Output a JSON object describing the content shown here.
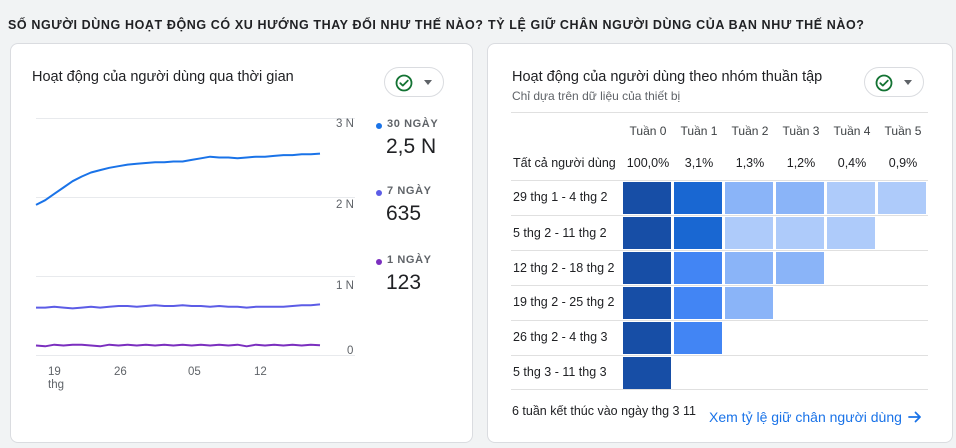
{
  "left_section": {
    "heading": "SỐ NGƯỜI DÙNG HOẠT ĐỘNG CÓ XU HƯỚNG THAY ĐỔI NHƯ THẾ NÀO?",
    "card_title": "Hoạt động của người dùng qua thời gian",
    "status_icon": "check-circle-icon",
    "y_ticks": [
      "3 N",
      "2 N",
      "1 N",
      "0"
    ],
    "x_ticks": [
      {
        "label": "19",
        "sub": "thg"
      },
      {
        "label": "26",
        "sub": ""
      },
      {
        "label": "05",
        "sub": ""
      },
      {
        "label": "12",
        "sub": ""
      }
    ],
    "legend": [
      {
        "label": "30 NGÀY",
        "value": "2,5 N",
        "color": "#1a73e8"
      },
      {
        "label": "7 NGÀY",
        "value": "635",
        "color": "#5c5ce6"
      },
      {
        "label": "1 NGÀY",
        "value": "123",
        "color": "#7b2fbf"
      }
    ]
  },
  "chart_data": {
    "type": "line",
    "x": [
      "19 thg",
      "",
      "",
      "",
      "",
      "",
      "",
      "26",
      "",
      "",
      "",
      "",
      "",
      "",
      "",
      "",
      "",
      "05",
      "",
      "",
      "",
      "",
      "",
      "",
      "12",
      "",
      "",
      "",
      "",
      "",
      "",
      ""
    ],
    "ylim": [
      0,
      3000
    ],
    "grid": true,
    "series": [
      {
        "name": "30 NGÀY",
        "color": "#1a73e8",
        "values": [
          1900,
          1960,
          2040,
          2120,
          2200,
          2260,
          2310,
          2340,
          2370,
          2390,
          2410,
          2420,
          2430,
          2440,
          2440,
          2450,
          2450,
          2470,
          2490,
          2510,
          2500,
          2500,
          2490,
          2500,
          2510,
          2510,
          2520,
          2530,
          2530,
          2540,
          2540,
          2550
        ]
      },
      {
        "name": "7 NGÀY",
        "color": "#5c5ce6",
        "values": [
          600,
          600,
          610,
          600,
          590,
          600,
          610,
          600,
          610,
          620,
          620,
          610,
          620,
          630,
          620,
          620,
          630,
          620,
          620,
          610,
          620,
          610,
          610,
          600,
          610,
          610,
          610,
          610,
          620,
          630,
          630,
          640
        ]
      },
      {
        "name": "1 NGÀY",
        "color": "#7b2fbf",
        "values": [
          120,
          110,
          130,
          120,
          130,
          130,
          120,
          110,
          130,
          120,
          130,
          120,
          130,
          120,
          130,
          120,
          130,
          120,
          130,
          120,
          130,
          120,
          130,
          110,
          130,
          120,
          130,
          120,
          130,
          120,
          130,
          123
        ]
      }
    ]
  },
  "right_section": {
    "heading": "TỶ LỆ GIỮ CHÂN NGƯỜI DÙNG CỦA BẠN NHƯ THẾ NÀO?",
    "card_title": "Hoạt động của người dùng theo nhóm thuần tập",
    "card_subtitle": "Chỉ dựa trên dữ liệu của thiết bị",
    "status_icon": "check-circle-icon",
    "columns": [
      "Tuần 0",
      "Tuần 1",
      "Tuần 2",
      "Tuần 3",
      "Tuần 4",
      "Tuần 5"
    ],
    "all_users": {
      "label": "Tất cả người dùng",
      "values": [
        "100,0%",
        "3,1%",
        "1,3%",
        "1,2%",
        "0,4%",
        "0,9%"
      ]
    },
    "cohorts": [
      {
        "label": "29 thg 1 - 4 thg 2",
        "cells": [
          1.0,
          0.85,
          0.5,
          0.5,
          0.35,
          0.35
        ]
      },
      {
        "label": "5 thg 2 - 11 thg 2",
        "cells": [
          1.0,
          0.85,
          0.35,
          0.35,
          0.35
        ]
      },
      {
        "label": "12 thg 2 - 18 thg 2",
        "cells": [
          1.0,
          0.65,
          0.5,
          0.5
        ]
      },
      {
        "label": "19 thg 2 - 25 thg 2",
        "cells": [
          1.0,
          0.65,
          0.5
        ]
      },
      {
        "label": "26 thg 2 - 4 thg 3",
        "cells": [
          1.0,
          0.65
        ]
      },
      {
        "label": "5 thg 3 - 11 thg 3",
        "cells": [
          1.0
        ]
      }
    ],
    "footer_note": "6 tuần kết thúc vào ngày thg 3 11",
    "footer_link": "Xem tỷ lệ giữ chân người dùng"
  }
}
